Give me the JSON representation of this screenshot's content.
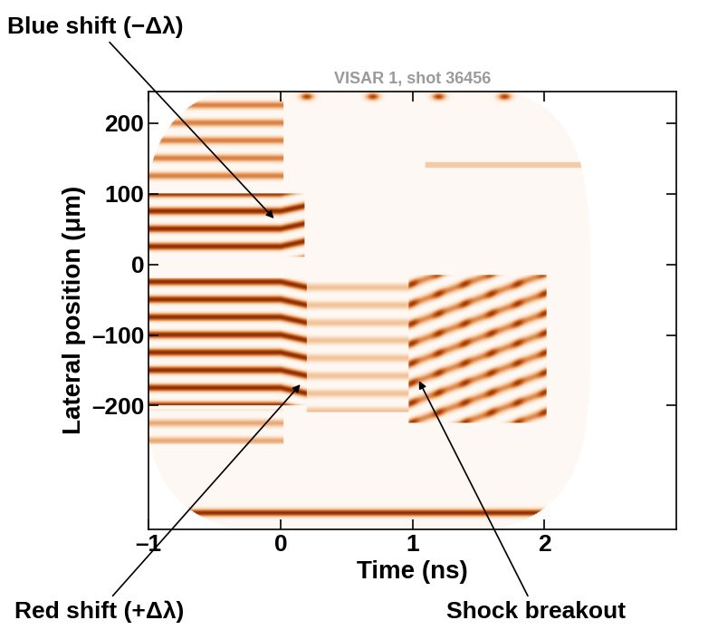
{
  "chart_data": {
    "type": "streak_image",
    "title": "VISAR 1, shot 36456",
    "x_label": "Time (ns)",
    "y_label": "Lateral position (μm)",
    "xlim": [
      -1,
      3
    ],
    "xticks": [
      {
        "value": -1,
        "label": "–1"
      },
      0,
      1,
      2
    ],
    "ylim": [
      -375,
      245
    ],
    "yticks": [
      {
        "value": -200,
        "label": "–200"
      },
      {
        "value": -100,
        "label": "–100"
      },
      0,
      100,
      200
    ],
    "annotations": [
      {
        "text": "Blue shift (−Δλ)",
        "x": -0.05,
        "y": 65
      },
      {
        "text": "Red shift (+Δλ)",
        "x": 0.15,
        "y": -170
      },
      {
        "text": "Shock breakout",
        "x": 1.05,
        "y": -165
      }
    ]
  }
}
